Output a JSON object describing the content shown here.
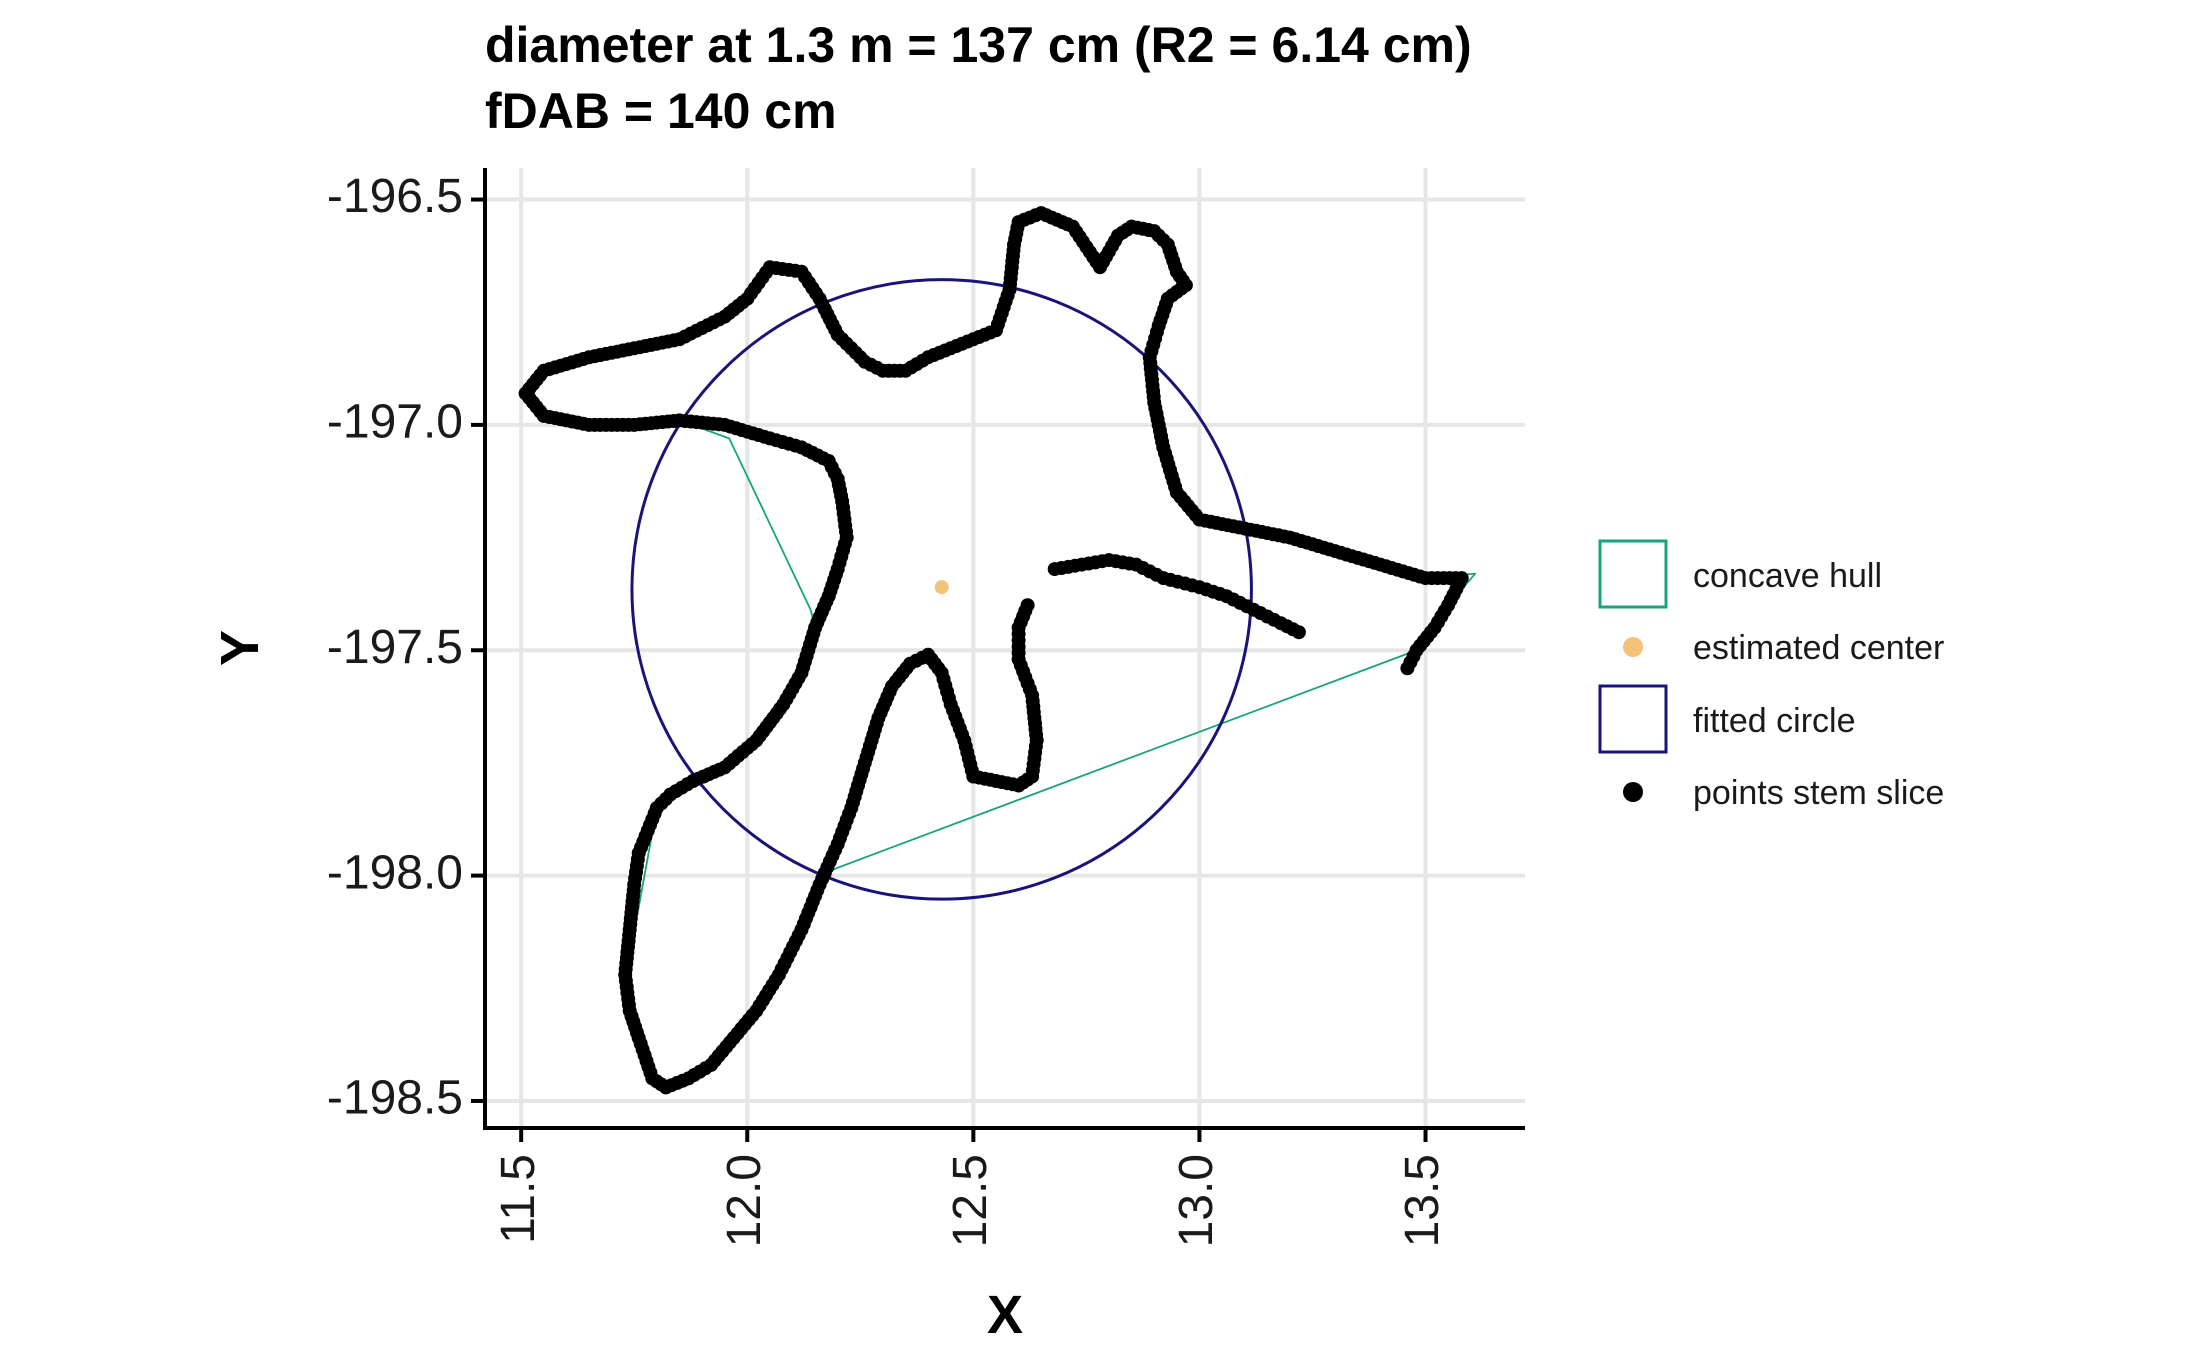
{
  "chart_data": {
    "type": "scatter",
    "title_line1": "diameter at 1.3 m = 137 cm (R2 = 6.14 cm)",
    "title_line2": "fDAB = 140 cm",
    "xlabel": "X",
    "ylabel": "Y",
    "xlim": [
      11.42,
      13.72
    ],
    "ylim": [
      -198.56,
      -196.43
    ],
    "x_ticks": [
      11.5,
      12.0,
      12.5,
      13.0,
      13.5
    ],
    "x_tick_labels": [
      "11.5",
      "12.0",
      "12.5",
      "13.0",
      "13.5"
    ],
    "y_ticks": [
      -196.5,
      -197.0,
      -197.5,
      -198.0,
      -198.5
    ],
    "y_tick_labels": [
      "-196.5",
      "-197.0",
      "-197.5",
      "-198.0",
      "-198.5"
    ],
    "grid": true,
    "legend_position": "right",
    "legend": [
      {
        "key": "hull",
        "label": "concave hull"
      },
      {
        "key": "center",
        "label": "estimated center"
      },
      {
        "key": "circle",
        "label": "fitted circle"
      },
      {
        "key": "points",
        "label": "points stem slice"
      }
    ],
    "colors": {
      "concave_hull": "#1aa37f",
      "estimated_center": "#f5c27a",
      "fitted_circle": "#1b1478",
      "points": "#000000",
      "grid": "#e6e6e6"
    },
    "fitted_circle": {
      "cx": 12.43,
      "cy": -197.365,
      "r": 0.685
    },
    "estimated_center": {
      "x": 12.43,
      "y": -197.36
    },
    "outer_contour": [
      [
        11.51,
        -196.93
      ],
      [
        11.55,
        -196.88
      ],
      [
        11.65,
        -196.85
      ],
      [
        11.75,
        -196.83
      ],
      [
        11.85,
        -196.81
      ],
      [
        11.95,
        -196.76
      ],
      [
        12.0,
        -196.72
      ],
      [
        12.05,
        -196.65
      ],
      [
        12.12,
        -196.66
      ],
      [
        12.16,
        -196.72
      ],
      [
        12.2,
        -196.8
      ],
      [
        12.26,
        -196.86
      ],
      [
        12.3,
        -196.88
      ],
      [
        12.35,
        -196.88
      ],
      [
        12.4,
        -196.85
      ],
      [
        12.45,
        -196.83
      ],
      [
        12.5,
        -196.81
      ],
      [
        12.55,
        -196.79
      ],
      [
        12.58,
        -196.7
      ],
      [
        12.59,
        -196.6
      ],
      [
        12.6,
        -196.55
      ],
      [
        12.65,
        -196.53
      ],
      [
        12.72,
        -196.56
      ],
      [
        12.78,
        -196.65
      ],
      [
        12.82,
        -196.58
      ],
      [
        12.85,
        -196.56
      ],
      [
        12.9,
        -196.57
      ],
      [
        12.93,
        -196.6
      ],
      [
        12.95,
        -196.66
      ],
      [
        12.97,
        -196.69
      ],
      [
        12.93,
        -196.72
      ],
      [
        12.91,
        -196.78
      ],
      [
        12.89,
        -196.85
      ],
      [
        12.9,
        -196.95
      ],
      [
        12.92,
        -197.05
      ],
      [
        12.95,
        -197.15
      ],
      [
        13.0,
        -197.21
      ],
      [
        13.1,
        -197.23
      ],
      [
        13.2,
        -197.25
      ],
      [
        13.3,
        -197.28
      ],
      [
        13.4,
        -197.31
      ],
      [
        13.5,
        -197.34
      ],
      [
        13.58,
        -197.34
      ],
      [
        13.55,
        -197.4
      ],
      [
        13.52,
        -197.45
      ],
      [
        13.48,
        -197.5
      ],
      [
        13.46,
        -197.54
      ]
    ],
    "contour_a": [
      [
        11.51,
        -196.93
      ],
      [
        11.55,
        -196.98
      ],
      [
        11.65,
        -197.0
      ],
      [
        11.75,
        -197.0
      ],
      [
        11.85,
        -196.99
      ],
      [
        11.95,
        -197.0
      ],
      [
        12.05,
        -197.03
      ],
      [
        12.12,
        -197.05
      ],
      [
        12.18,
        -197.08
      ],
      [
        12.2,
        -197.12
      ],
      [
        12.21,
        -197.17
      ],
      [
        12.22,
        -197.25
      ],
      [
        12.2,
        -197.32
      ],
      [
        12.18,
        -197.38
      ],
      [
        12.15,
        -197.45
      ],
      [
        12.12,
        -197.55
      ],
      [
        12.08,
        -197.62
      ],
      [
        12.02,
        -197.7
      ],
      [
        11.95,
        -197.76
      ],
      [
        11.88,
        -197.79
      ],
      [
        11.83,
        -197.82
      ],
      [
        11.8,
        -197.85
      ],
      [
        11.78,
        -197.9
      ],
      [
        11.76,
        -197.95
      ],
      [
        11.75,
        -198.02
      ],
      [
        11.74,
        -198.12
      ],
      [
        11.73,
        -198.22
      ],
      [
        11.74,
        -198.3
      ],
      [
        11.76,
        -198.36
      ],
      [
        11.79,
        -198.45
      ],
      [
        11.82,
        -198.47
      ],
      [
        11.87,
        -198.45
      ],
      [
        11.92,
        -198.42
      ],
      [
        11.97,
        -198.36
      ],
      [
        12.02,
        -198.3
      ],
      [
        12.07,
        -198.22
      ],
      [
        12.12,
        -198.12
      ],
      [
        12.16,
        -198.02
      ],
      [
        12.2,
        -197.93
      ],
      [
        12.23,
        -197.85
      ],
      [
        12.26,
        -197.75
      ],
      [
        12.29,
        -197.65
      ],
      [
        12.32,
        -197.58
      ],
      [
        12.36,
        -197.53
      ],
      [
        12.4,
        -197.51
      ],
      [
        12.43,
        -197.55
      ],
      [
        12.45,
        -197.62
      ],
      [
        12.48,
        -197.7
      ],
      [
        12.5,
        -197.78
      ],
      [
        12.55,
        -197.79
      ],
      [
        12.6,
        -197.8
      ],
      [
        12.63,
        -197.78
      ],
      [
        12.64,
        -197.7
      ],
      [
        12.63,
        -197.6
      ],
      [
        12.6,
        -197.52
      ],
      [
        12.6,
        -197.45
      ],
      [
        12.62,
        -197.4
      ]
    ],
    "contour_b": [
      [
        12.68,
        -197.32
      ],
      [
        12.74,
        -197.31
      ],
      [
        12.8,
        -197.3
      ],
      [
        12.86,
        -197.31
      ],
      [
        12.92,
        -197.34
      ],
      [
        13.0,
        -197.36
      ],
      [
        13.06,
        -197.38
      ],
      [
        13.12,
        -197.41
      ],
      [
        13.18,
        -197.44
      ],
      [
        13.22,
        -197.46
      ]
    ],
    "hull_polygon": [
      [
        11.51,
        -196.93
      ],
      [
        11.55,
        -196.88
      ],
      [
        11.65,
        -196.85
      ],
      [
        11.75,
        -196.83
      ],
      [
        11.85,
        -196.81
      ],
      [
        11.95,
        -196.76
      ],
      [
        12.0,
        -196.72
      ],
      [
        12.05,
        -196.65
      ],
      [
        12.12,
        -196.66
      ],
      [
        12.16,
        -196.72
      ],
      [
        12.2,
        -196.8
      ],
      [
        12.26,
        -196.86
      ],
      [
        12.3,
        -196.88
      ],
      [
        12.35,
        -196.88
      ],
      [
        12.4,
        -196.85
      ],
      [
        12.45,
        -196.83
      ],
      [
        12.5,
        -196.81
      ],
      [
        12.55,
        -196.79
      ],
      [
        12.58,
        -196.7
      ],
      [
        12.59,
        -196.6
      ],
      [
        12.6,
        -196.55
      ],
      [
        12.65,
        -196.53
      ],
      [
        12.72,
        -196.56
      ],
      [
        12.78,
        -196.65
      ],
      [
        12.82,
        -196.58
      ],
      [
        12.85,
        -196.56
      ],
      [
        12.9,
        -196.57
      ],
      [
        12.93,
        -196.6
      ],
      [
        12.95,
        -196.66
      ],
      [
        12.97,
        -196.69
      ],
      [
        12.93,
        -196.72
      ],
      [
        12.91,
        -196.78
      ],
      [
        12.89,
        -196.85
      ],
      [
        12.9,
        -196.95
      ],
      [
        12.92,
        -197.05
      ],
      [
        12.95,
        -197.15
      ],
      [
        13.0,
        -197.21
      ],
      [
        13.1,
        -197.23
      ],
      [
        13.2,
        -197.25
      ],
      [
        13.3,
        -197.28
      ],
      [
        13.4,
        -197.31
      ],
      [
        13.5,
        -197.34
      ],
      [
        13.61,
        -197.33
      ],
      [
        13.55,
        -197.4
      ],
      [
        13.48,
        -197.5
      ],
      [
        12.18,
        -197.99
      ],
      [
        12.12,
        -198.12
      ],
      [
        12.07,
        -198.22
      ],
      [
        12.02,
        -198.3
      ],
      [
        11.97,
        -198.36
      ],
      [
        11.92,
        -198.42
      ],
      [
        11.87,
        -198.45
      ],
      [
        11.8,
        -198.47
      ],
      [
        11.76,
        -198.36
      ],
      [
        11.74,
        -198.3
      ],
      [
        11.73,
        -198.22
      ],
      [
        11.76,
        -198.07
      ],
      [
        11.8,
        -197.85
      ],
      [
        11.83,
        -197.82
      ],
      [
        11.88,
        -197.79
      ],
      [
        11.95,
        -197.76
      ],
      [
        12.02,
        -197.7
      ],
      [
        12.08,
        -197.62
      ],
      [
        12.12,
        -197.55
      ],
      [
        12.15,
        -197.45
      ],
      [
        12.14,
        -197.41
      ],
      [
        11.96,
        -197.03
      ],
      [
        11.85,
        -196.99
      ],
      [
        11.75,
        -197.0
      ],
      [
        11.65,
        -197.0
      ],
      [
        11.55,
        -196.98
      ],
      [
        11.51,
        -196.93
      ]
    ]
  }
}
